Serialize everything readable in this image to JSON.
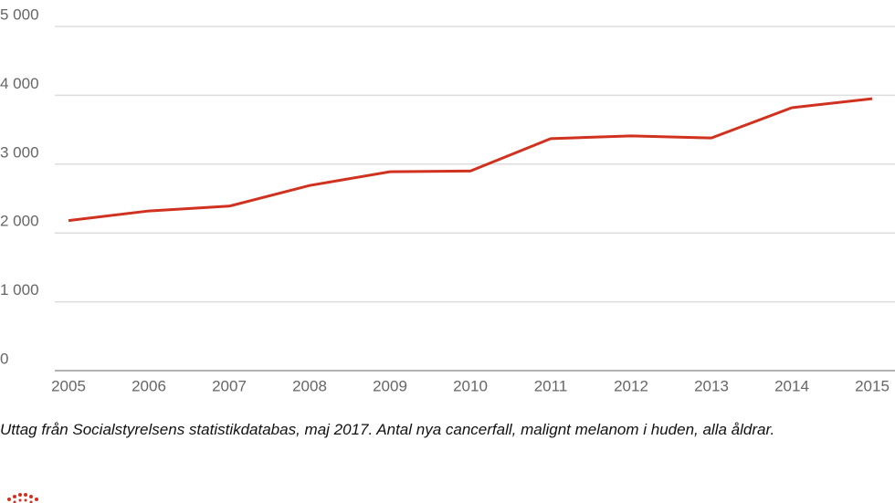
{
  "chart_data": {
    "type": "line",
    "x": [
      2005,
      2006,
      2007,
      2008,
      2009,
      2010,
      2011,
      2012,
      2013,
      2014,
      2015
    ],
    "xlim": [
      2005,
      2015
    ],
    "xticks": [
      2005,
      2006,
      2007,
      2008,
      2009,
      2010,
      2011,
      2012,
      2013,
      2014,
      2015
    ],
    "series": [
      {
        "color": "#d0321f",
        "values": [
          2180,
          2320,
          2390,
          2690,
          2890,
          2900,
          3370,
          3410,
          3380,
          3820,
          3950
        ]
      }
    ],
    "ylim": [
      0,
      5000
    ],
    "yticks": [
      0,
      {
        "value": 1000,
        "label": "1 000"
      },
      {
        "value": 2000,
        "label": "2 000"
      },
      {
        "value": 3000,
        "label": "3 000"
      },
      {
        "value": 4000,
        "label": "4 000"
      },
      {
        "value": 5000,
        "label": "5 000"
      }
    ],
    "grid": true,
    "caption": "Uttag från Socialstyrelsens statistikdatabas, maj 2017. Antal nya cancerfall, malignt melanom i huden, alla åldrar."
  }
}
